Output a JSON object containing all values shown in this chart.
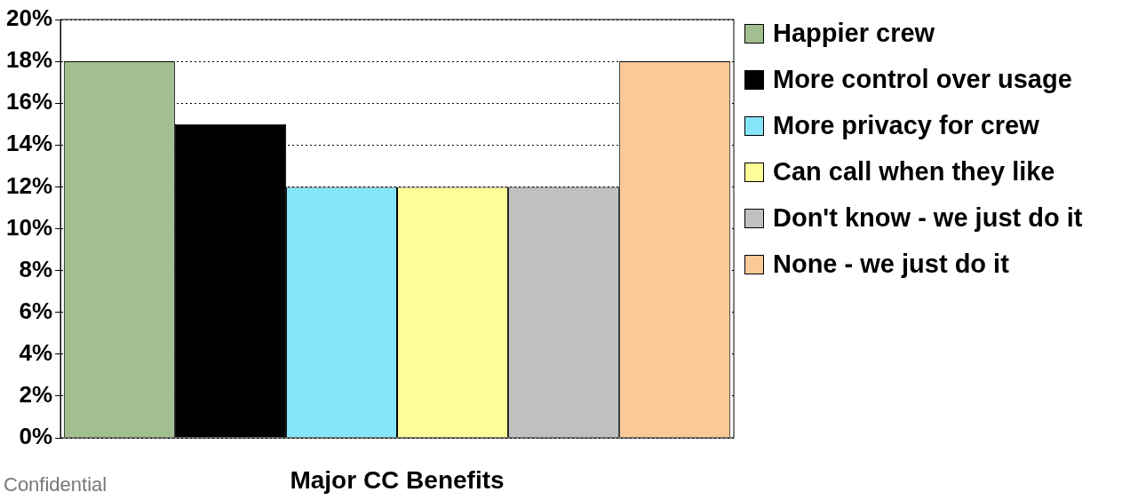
{
  "chart_data": {
    "type": "bar",
    "xlabel": "Major CC Benefits",
    "categories": [
      null
    ],
    "series": [
      {
        "name": "Happier crew",
        "color": "#a2bf8f",
        "values": [
          18
        ]
      },
      {
        "name": "More control over usage",
        "color": "#000000",
        "values": [
          15
        ]
      },
      {
        "name": "More privacy for crew",
        "color": "#87e5f9",
        "values": [
          12
        ]
      },
      {
        "name": "Can call when they like",
        "color": "#fdfd99",
        "values": [
          12
        ]
      },
      {
        "name": "Don't know - we just do it",
        "color": "#c0c0c0",
        "values": [
          12
        ]
      },
      {
        "name": "None - we just do it",
        "color": "#fdc897",
        "values": [
          18
        ]
      }
    ],
    "ylim": [
      0,
      20
    ],
    "yticks": [
      {
        "value": 0,
        "label": "0%"
      },
      {
        "value": 2,
        "label": "2%"
      },
      {
        "value": 4,
        "label": "4%"
      },
      {
        "value": 6,
        "label": "6%"
      },
      {
        "value": 8,
        "label": "8%"
      },
      {
        "value": 10,
        "label": "10%"
      },
      {
        "value": 12,
        "label": "12%"
      },
      {
        "value": 14,
        "label": "14%"
      },
      {
        "value": 16,
        "label": "16%"
      },
      {
        "value": 18,
        "label": "18%"
      },
      {
        "value": 20,
        "label": "20%"
      }
    ],
    "grid": "y",
    "legend": "right",
    "annotations": [
      "Confidential"
    ]
  }
}
